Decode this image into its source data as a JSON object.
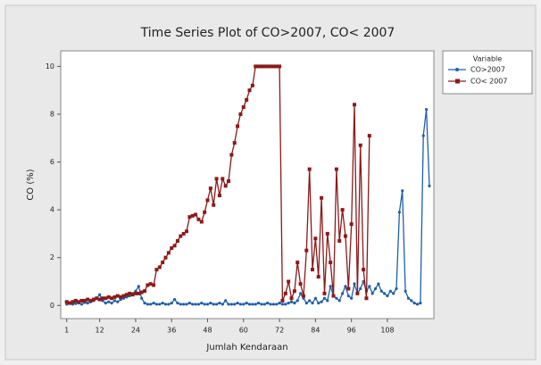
{
  "chart_data": {
    "type": "line",
    "title": "Time Series Plot of CO>2007, CO< 2007",
    "x_label": "Jumlah Kendaraan",
    "y_label": "CO (%)",
    "legend_title": "Variable",
    "legend_position": "right",
    "x": [
      1,
      2,
      3,
      4,
      5,
      6,
      7,
      8,
      9,
      10,
      11,
      12,
      13,
      14,
      15,
      16,
      17,
      18,
      19,
      20,
      21,
      22,
      23,
      24,
      25,
      26,
      27,
      28,
      29,
      30,
      31,
      32,
      33,
      34,
      35,
      36,
      37,
      38,
      39,
      40,
      41,
      42,
      43,
      44,
      45,
      46,
      47,
      48,
      49,
      50,
      51,
      52,
      53,
      54,
      55,
      56,
      57,
      58,
      59,
      60,
      61,
      62,
      63,
      64,
      65,
      66,
      67,
      68,
      69,
      70,
      71,
      72,
      73,
      74,
      75,
      76,
      77,
      78,
      79,
      80,
      81,
      82,
      83,
      84,
      85,
      86,
      87,
      88,
      89,
      90,
      91,
      92,
      93,
      94,
      95,
      96,
      97,
      98,
      99,
      100,
      101,
      102,
      103,
      104,
      105,
      106,
      107,
      108,
      109,
      110,
      111,
      112,
      113,
      114,
      115,
      116,
      117,
      118,
      119,
      120,
      121,
      122
    ],
    "xlim": [
      -1,
      123.5
    ],
    "xticks": [
      1,
      12,
      24,
      36,
      48,
      60,
      72,
      84,
      96,
      108
    ],
    "ylim": [
      -0.55,
      10.65
    ],
    "yticks": [
      0,
      2,
      4,
      6,
      8,
      10
    ],
    "series": [
      {
        "name": "CO>2007",
        "color": "#1f5fa8",
        "marker": "star",
        "values": [
          0.05,
          0.1,
          0.05,
          0.08,
          0.1,
          0.05,
          0.12,
          0.1,
          0.15,
          0.2,
          0.3,
          0.45,
          0.2,
          0.1,
          0.15,
          0.1,
          0.2,
          0.15,
          0.25,
          0.3,
          0.35,
          0.4,
          0.5,
          0.6,
          0.8,
          0.3,
          0.1,
          0.05,
          0.05,
          0.1,
          0.05,
          0.05,
          0.1,
          0.05,
          0.05,
          0.1,
          0.25,
          0.1,
          0.05,
          0.05,
          0.05,
          0.1,
          0.05,
          0.05,
          0.05,
          0.1,
          0.05,
          0.05,
          0.1,
          0.05,
          0.05,
          0.1,
          0.05,
          0.2,
          0.05,
          0.05,
          0.05,
          0.1,
          0.05,
          0.05,
          0.1,
          0.05,
          0.05,
          0.05,
          0.1,
          0.05,
          0.05,
          0.1,
          0.05,
          0.05,
          0.05,
          0.1,
          0.05,
          0.05,
          0.1,
          0.15,
          0.1,
          0.2,
          0.5,
          0.3,
          0.1,
          0.2,
          0.1,
          0.3,
          0.1,
          0.15,
          0.3,
          0.2,
          0.8,
          0.4,
          0.3,
          0.2,
          0.5,
          0.8,
          0.4,
          0.3,
          0.9,
          0.5,
          0.7,
          1.0,
          0.6,
          0.8,
          0.5,
          0.7,
          0.9,
          0.6,
          0.5,
          0.4,
          0.6,
          0.5,
          0.7,
          3.9,
          4.8,
          0.6,
          0.3,
          0.2,
          0.1,
          0.05,
          0.1,
          7.1,
          8.2,
          5.0
        ]
      },
      {
        "name": "CO< 2007",
        "color": "#8b1a1a",
        "marker": "square",
        "values": [
          0.15,
          0.1,
          0.15,
          0.2,
          0.15,
          0.2,
          0.2,
          0.25,
          0.2,
          0.25,
          0.3,
          0.25,
          0.3,
          0.3,
          0.35,
          0.3,
          0.35,
          0.4,
          0.35,
          0.4,
          0.45,
          0.5,
          0.45,
          0.5,
          0.5,
          0.55,
          0.6,
          0.85,
          0.9,
          0.85,
          1.5,
          1.6,
          1.8,
          2.0,
          2.2,
          2.4,
          2.5,
          2.7,
          2.9,
          3.0,
          3.1,
          3.7,
          3.75,
          3.8,
          3.6,
          3.5,
          3.9,
          4.4,
          4.9,
          4.2,
          5.3,
          4.6,
          5.3,
          5.0,
          5.2,
          6.3,
          6.8,
          7.5,
          8.0,
          8.3,
          8.6,
          9.0,
          9.2,
          10.0,
          10.0,
          10.0,
          10.0,
          10.0,
          10.0,
          10.0,
          10.0,
          10.0,
          0.2,
          0.5,
          1.0,
          0.3,
          0.6,
          1.8,
          0.9,
          0.4,
          2.3,
          5.7,
          1.5,
          2.8,
          1.2,
          4.5,
          0.5,
          3.0,
          1.8,
          0.4,
          5.7,
          2.7,
          4.0,
          2.9,
          0.7,
          3.4,
          8.4,
          0.5,
          6.7,
          1.5,
          0.3,
          7.1,
          null,
          null,
          null,
          null,
          null,
          null,
          null,
          null,
          null,
          null,
          null,
          null,
          null,
          null,
          null,
          null,
          null,
          null,
          null,
          null
        ]
      }
    ]
  }
}
